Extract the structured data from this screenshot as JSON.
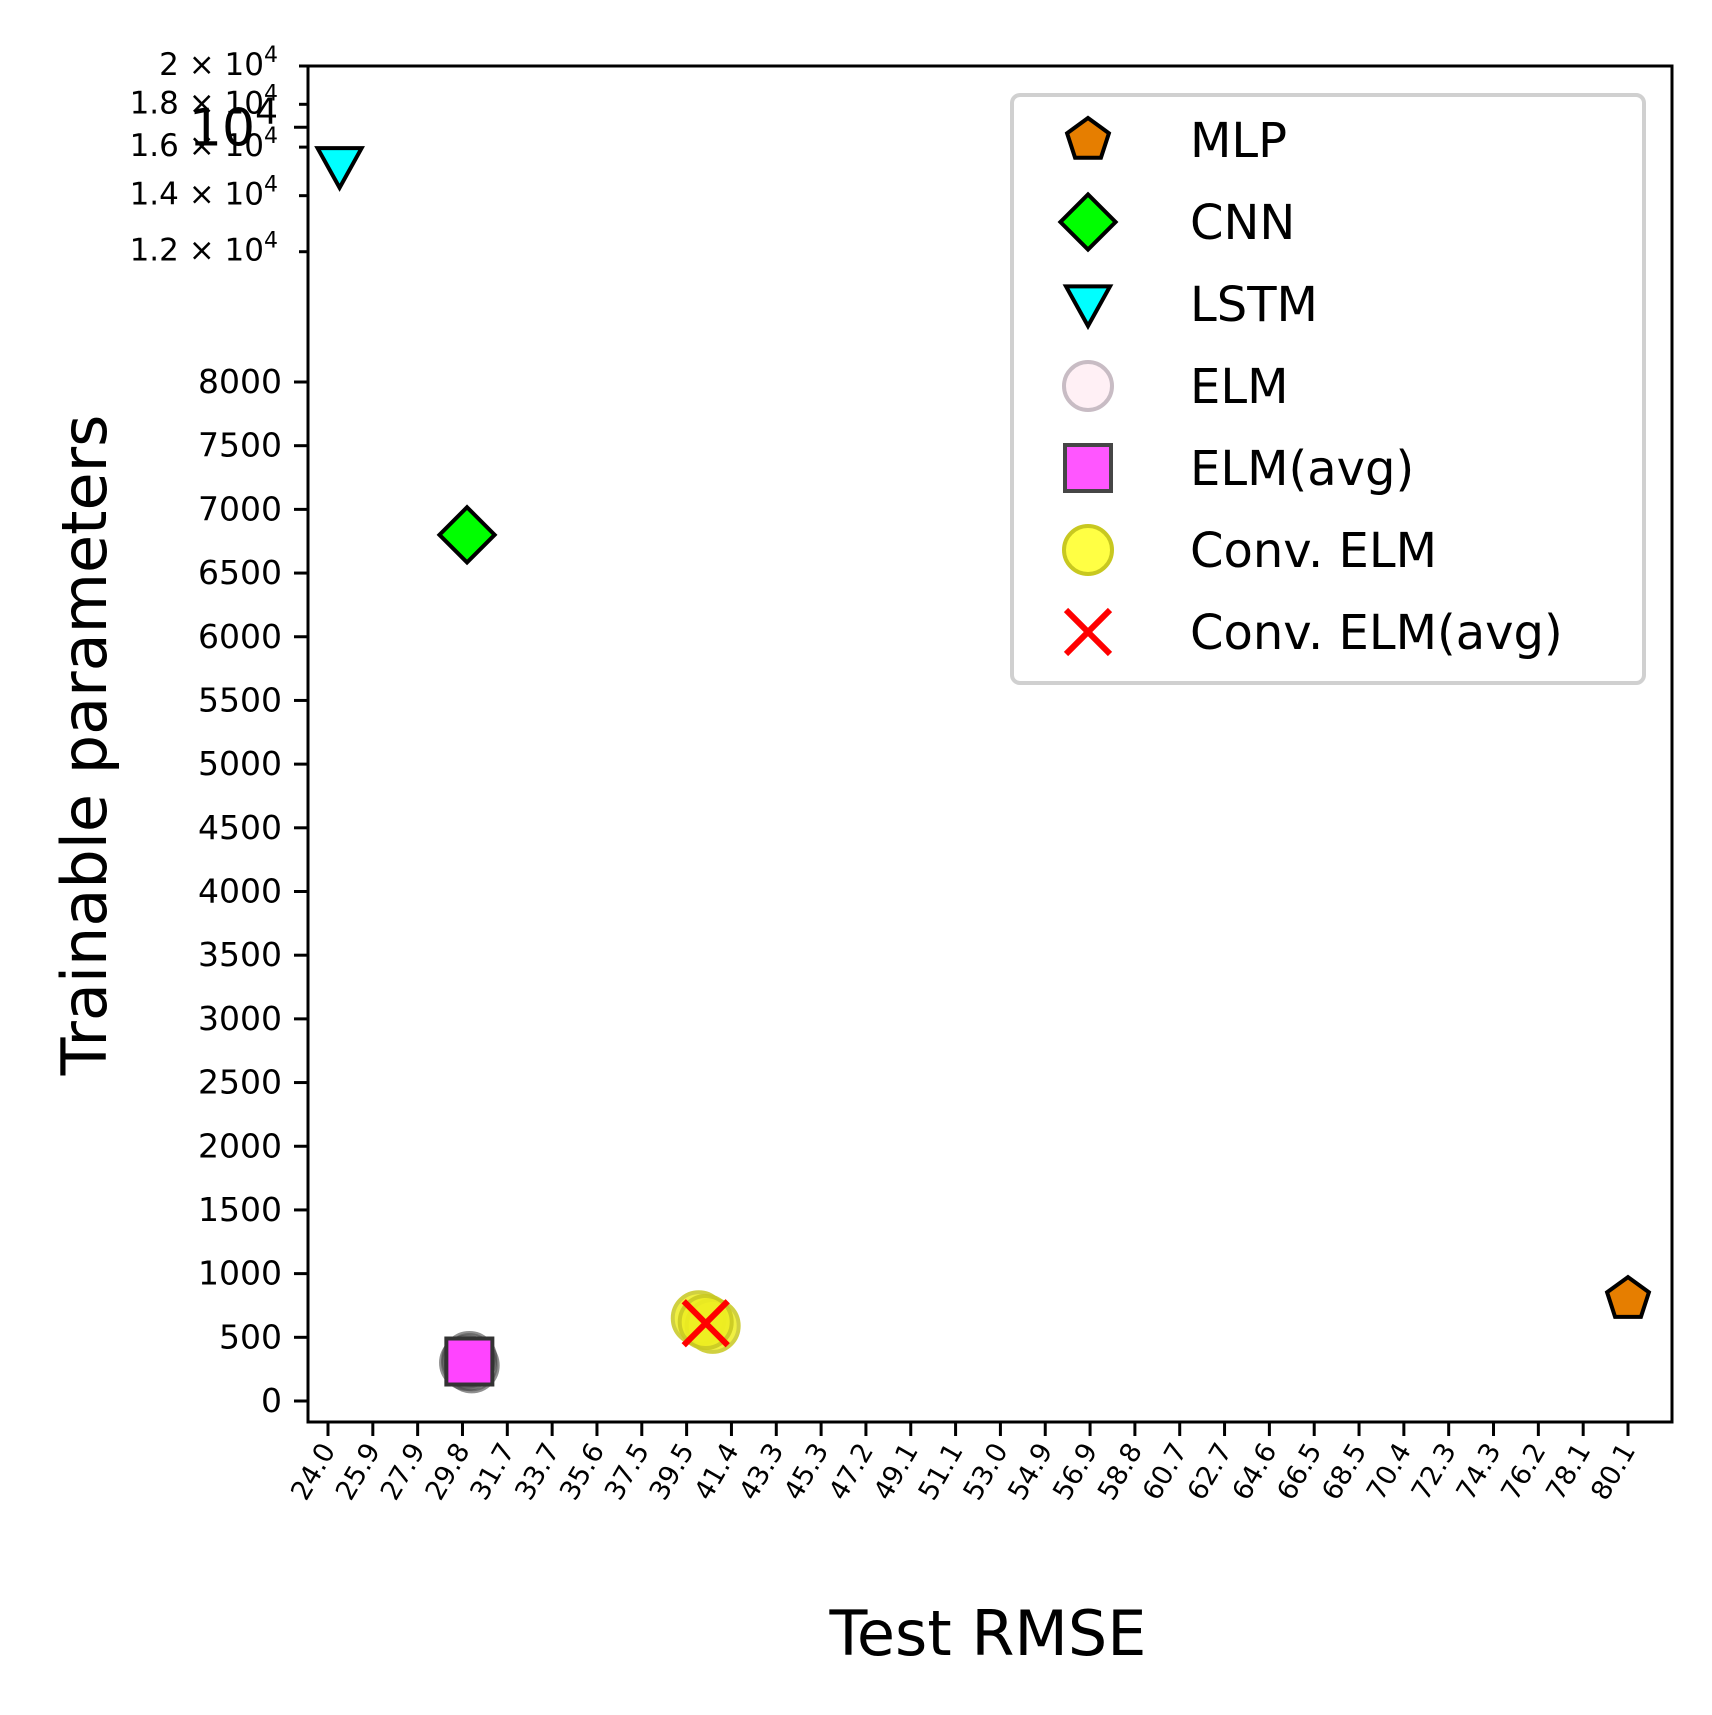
{
  "chart_data": {
    "type": "scatter",
    "title": "",
    "xlabel": "Test RMSE",
    "ylabel": "Trainable parameters",
    "xlim": [
      23.6,
      82.0
    ],
    "x_ticks": [
      "24.0",
      "25.9",
      "27.9",
      "29.8",
      "31.7",
      "33.7",
      "35.6",
      "37.5",
      "39.5",
      "41.4",
      "43.3",
      "45.3",
      "47.2",
      "49.1",
      "51.1",
      "53.0",
      "54.9",
      "56.9",
      "58.8",
      "60.7",
      "62.7",
      "64.6",
      "66.5",
      "68.5",
      "70.4",
      "72.3",
      "74.3",
      "76.2",
      "78.1",
      "80.1"
    ],
    "y_ticks_linear": [
      "0",
      "500",
      "1000",
      "1500",
      "2000",
      "2500",
      "3000",
      "3500",
      "4000",
      "4500",
      "5000",
      "5500",
      "6000",
      "6500",
      "7000",
      "7500",
      "8000"
    ],
    "y_ticks_log": [
      {
        "mantissa": "",
        "exp": "4",
        "value": 10000
      },
      {
        "mantissa": "1.2",
        "exp": "4",
        "value": 12000
      },
      {
        "mantissa": "1.4",
        "exp": "4",
        "value": 14000
      },
      {
        "mantissa": "1.6",
        "exp": "4",
        "value": 16000
      },
      {
        "mantissa": "1.8",
        "exp": "4",
        "value": 18000
      },
      {
        "mantissa": "2",
        "exp": "4",
        "value": 20000
      }
    ],
    "legend_position": "top-right",
    "series": [
      {
        "name": "MLP",
        "marker": "pentagon",
        "color": "#e67e00",
        "edge": "#000000",
        "points": [
          [
            80.1,
            800
          ]
        ]
      },
      {
        "name": "CNN",
        "marker": "diamond",
        "color": "#00ff00",
        "edge": "#000000",
        "points": [
          [
            30.0,
            6800
          ]
        ]
      },
      {
        "name": "LSTM",
        "marker": "triangle-down",
        "color": "#00ffff",
        "edge": "#000000",
        "points": [
          [
            24.5,
            15200
          ]
        ]
      },
      {
        "name": "ELM",
        "marker": "circle",
        "color": "#fff0f5",
        "edge": "#c8bcc4",
        "points": [
          [
            30.1,
            330
          ],
          [
            30.0,
            300
          ],
          [
            30.2,
            280
          ]
        ]
      },
      {
        "name": "ELM(avg)",
        "marker": "square",
        "color": "#ff44ff",
        "edge": "#333333",
        "points": [
          [
            30.1,
            310
          ]
        ]
      },
      {
        "name": "Conv. ELM",
        "marker": "circle",
        "color": "#ffff44",
        "edge": "#c8c820",
        "points": [
          [
            40.0,
            650
          ],
          [
            40.6,
            590
          ],
          [
            40.3,
            620
          ]
        ]
      },
      {
        "name": "Conv. ELM(avg)",
        "marker": "x",
        "color": "#ff0000",
        "edge": "#ff0000",
        "points": [
          [
            40.3,
            610
          ]
        ]
      }
    ]
  }
}
